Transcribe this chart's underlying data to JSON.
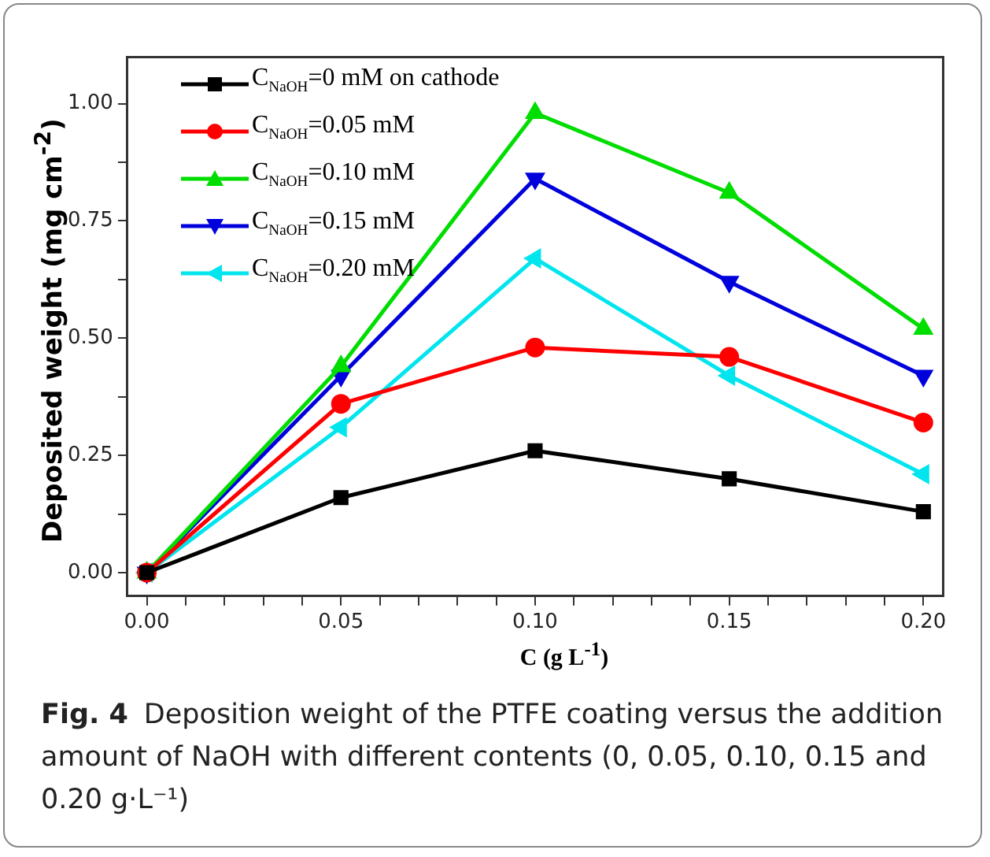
{
  "chart_data": {
    "type": "line",
    "xlabel": "C (g L$^{-1}$)",
    "ylabel": "Deposited weight (mg cm$^{-2}$)",
    "annotations": [
      "Fig. 4",
      "Deposition weight of the PTFE coating versus the addition amount of NaOH with different contents (0, 0.05, 0.10, 0.15 and 0.20 g·L⁻¹)"
    ],
    "x": [
      0,
      0.05,
      0.1,
      0.15,
      0.2
    ],
    "xlim": [
      -0.005,
      0.205
    ],
    "xticks": [
      {
        "value": 0,
        "label": "0.00"
      },
      {
        "value": 0.01,
        "label": null
      },
      {
        "value": 0.02,
        "label": null
      },
      {
        "value": 0.03,
        "label": null
      },
      {
        "value": 0.04,
        "label": null
      },
      {
        "value": 0.05,
        "label": "0.05"
      },
      {
        "value": 0.06,
        "label": null
      },
      {
        "value": 0.07,
        "label": null
      },
      {
        "value": 0.08,
        "label": null
      },
      {
        "value": 0.09,
        "label": null
      },
      {
        "value": 0.1,
        "label": "0.10"
      },
      {
        "value": 0.11,
        "label": null
      },
      {
        "value": 0.12,
        "label": null
      },
      {
        "value": 0.13,
        "label": null
      },
      {
        "value": 0.14,
        "label": null
      },
      {
        "value": 0.15,
        "label": "0.15"
      },
      {
        "value": 0.16,
        "label": null
      },
      {
        "value": 0.17,
        "label": null
      },
      {
        "value": 0.18,
        "label": null
      },
      {
        "value": 0.19,
        "label": null
      },
      {
        "value": 0.2,
        "label": "0.20"
      }
    ],
    "ylim": [
      -0.05,
      1.1
    ],
    "yticks": [
      {
        "value": 0,
        "label": "0.00"
      },
      {
        "value": 0.125,
        "label": null
      },
      {
        "value": 0.25,
        "label": "0.25"
      },
      {
        "value": 0.375,
        "label": null
      },
      {
        "value": 0.5,
        "label": "0.50"
      },
      {
        "value": 0.625,
        "label": null
      },
      {
        "value": 0.75,
        "label": "0.75"
      },
      {
        "value": 0.875,
        "label": null
      },
      {
        "value": 1,
        "label": "1.00"
      }
    ],
    "grid": false,
    "legend": "top left",
    "line_style": "solid",
    "series": [
      {
        "name": "C$_{NaOH}$=0 mM on cathode",
        "color": "#000000",
        "marker": "square",
        "values": [
          0,
          0.16,
          0.26,
          0.2,
          0.13
        ]
      },
      {
        "name": "C$_{NaOH}$=0.05 mM",
        "color": "#ff0000",
        "marker": "circle",
        "values": [
          0,
          0.36,
          0.48,
          0.46,
          0.32
        ]
      },
      {
        "name": "C$_{NaOH}$=0.10 mM",
        "color": "#00dd00",
        "marker": "triangle",
        "values": [
          0,
          0.44,
          0.98,
          0.81,
          0.52
        ]
      },
      {
        "name": "C$_{NaOH}$=0.15 mM",
        "color": "#0000dd",
        "marker": "triangle-down",
        "values": [
          0,
          0.42,
          0.84,
          0.62,
          0.42
        ]
      },
      {
        "name": "C$_{NaOH}$=0.20 mM",
        "color": "#00e5ee",
        "marker": "triangle-left",
        "values": [
          0,
          0.31,
          0.67,
          0.42,
          0.21
        ]
      }
    ]
  }
}
